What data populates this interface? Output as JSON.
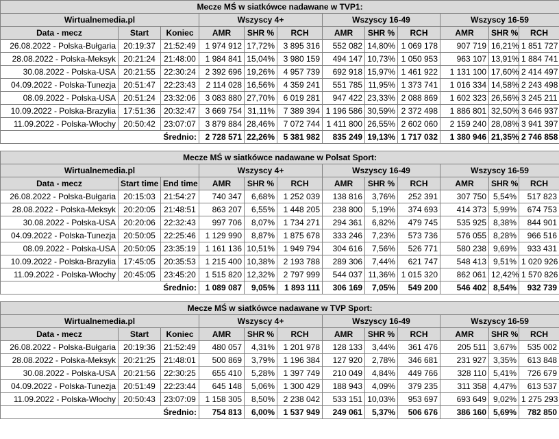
{
  "tables": [
    {
      "title": "Mecze MŚ w siatkówce nadawane w TVP1:",
      "brand": "Wirtualnemedia.pl",
      "groups": [
        "Wszyscy 4+",
        "Wszyscy 16-49",
        "Wszyscy 16-59"
      ],
      "columns": [
        "Data - mecz",
        "Start",
        "Koniec",
        "AMR",
        "SHR %",
        "RCH",
        "AMR",
        "SHR %",
        "RCH",
        "AMR",
        "SHR %",
        "RCH"
      ],
      "rows": [
        [
          "26.08.2022 - Polska-Bułgaria",
          "20:19:37",
          "21:52:49",
          "1 974 912",
          "17,72%",
          "3 895 316",
          "552 082",
          "14,80%",
          "1 069 178",
          "907 719",
          "16,21%",
          "1 851 727"
        ],
        [
          "28.08.2022 - Polska-Meksyk",
          "20:21:24",
          "21:48:00",
          "1 984 841",
          "15,04%",
          "3 980 159",
          "494 147",
          "10,73%",
          "1 050 953",
          "963 107",
          "13,91%",
          "1 884 741"
        ],
        [
          "30.08.2022 - Polska-USA",
          "20:21:55",
          "22:30:24",
          "2 392 696",
          "19,26%",
          "4 957 739",
          "692 918",
          "15,97%",
          "1 461 922",
          "1 131 100",
          "17,60%",
          "2 414 497"
        ],
        [
          "04.09.2022 - Polska-Tunezja",
          "20:51:47",
          "22:23:43",
          "2 114 028",
          "16,56%",
          "4 359 241",
          "551 785",
          "11,95%",
          "1 373 741",
          "1 016 334",
          "14,58%",
          "2 243 498"
        ],
        [
          "08.09.2022 - Polska-USA",
          "20:51:24",
          "23:32:06",
          "3 083 880",
          "27,70%",
          "6 019 281",
          "947 422",
          "23,33%",
          "2 088 869",
          "1 602 323",
          "26,56%",
          "3 245 211"
        ],
        [
          "10.09.2022 - Polska-Brazylia",
          "17:51:36",
          "20:32:47",
          "3 669 754",
          "31,11%",
          "7 389 394",
          "1 196 586",
          "30,59%",
          "2 372 498",
          "1 886 801",
          "32,50%",
          "3 646 937"
        ],
        [
          "11.09.2022 - Polska-Włochy",
          "20:50:42",
          "23:07:07",
          "3 879 884",
          "28,46%",
          "7 072 744",
          "1 411 800",
          "26,55%",
          "2 602 060",
          "2 159 240",
          "28,08%",
          "3 941 397"
        ]
      ],
      "average_label": "Średnio:",
      "average": [
        "2 728 571",
        "22,26%",
        "5 381 982",
        "835 249",
        "19,13%",
        "1 717 032",
        "1 380 946",
        "21,35%",
        "2 746 858"
      ]
    },
    {
      "title": "Mecze MŚ w siatkówce nadawane w Polsat Sport:",
      "brand": "Wirtualnemedia.pl",
      "groups": [
        "Wszyscy 4+",
        "Wszyscy 16-49",
        "Wszyscy 16-59"
      ],
      "columns": [
        "Data - mecz",
        "Start time",
        "End time",
        "AMR",
        "SHR %",
        "RCH",
        "AMR",
        "SHR %",
        "RCH",
        "AMR",
        "SHR %",
        "RCH"
      ],
      "rows": [
        [
          "26.08.2022 - Polska-Bułgaria",
          "20:15:03",
          "21:54:27",
          "740 347",
          "6,68%",
          "1 252 039",
          "138 816",
          "3,76%",
          "252 391",
          "307 750",
          "5,54%",
          "517 823"
        ],
        [
          "28.08.2022 - Polska-Meksyk",
          "20:20:05",
          "21:48:51",
          "863 207",
          "6,55%",
          "1 448 205",
          "238 800",
          "5,19%",
          "374 693",
          "414 373",
          "5,99%",
          "674 753"
        ],
        [
          "30.08.2022 - Polska-USA",
          "20:20:06",
          "22:32:43",
          "997 706",
          "8,07%",
          "1 734 271",
          "294 361",
          "6,82%",
          "479 745",
          "535 925",
          "8,38%",
          "844 901"
        ],
        [
          "04.09.2022 - Polska-Tunezja",
          "20:50:05",
          "22:25:46",
          "1 129 990",
          "8,87%",
          "1 875 678",
          "333 246",
          "7,23%",
          "573 736",
          "576 055",
          "8,28%",
          "966 516"
        ],
        [
          "08.09.2022 - Polska-USA",
          "20:50:05",
          "23:35:19",
          "1 161 136",
          "10,51%",
          "1 949 794",
          "304 616",
          "7,56%",
          "526 771",
          "580 238",
          "9,69%",
          "933 431"
        ],
        [
          "10.09.2022 - Polska-Brazylia",
          "17:45:05",
          "20:35:53",
          "1 215 400",
          "10,38%",
          "2 193 788",
          "289 306",
          "7,44%",
          "621 747",
          "548 413",
          "9,51%",
          "1 020 926"
        ],
        [
          "11.09.2022 - Polska-Włochy",
          "20:45:05",
          "23:45:20",
          "1 515 820",
          "12,32%",
          "2 797 999",
          "544 037",
          "11,36%",
          "1 015 320",
          "862 061",
          "12,42%",
          "1 570 826"
        ]
      ],
      "average_label": "Średnio:",
      "average": [
        "1 089 087",
        "9,05%",
        "1 893 111",
        "306 169",
        "7,05%",
        "549 200",
        "546 402",
        "8,54%",
        "932 739"
      ]
    },
    {
      "title": "Mecze MŚ w siatkówce nadawane w TVP Sport:",
      "brand": "Wirtualnemedia.pl",
      "groups": [
        "Wszyscy 4+",
        "Wszyscy 16-49",
        "Wszyscy 16-59"
      ],
      "columns": [
        "Data - mecz",
        "Start",
        "Koniec",
        "AMR",
        "SHR %",
        "RCH",
        "AMR",
        "SHR %",
        "RCH",
        "AMR",
        "SHR %",
        "RCH"
      ],
      "rows": [
        [
          "26.08.2022 - Polska-Bułgaria",
          "20:19:36",
          "21:52:49",
          "480 057",
          "4,31%",
          "1 201 978",
          "128 133",
          "3,44%",
          "361 476",
          "205 511",
          "3,67%",
          "535 002"
        ],
        [
          "28.08.2022 - Polska-Meksyk",
          "20:21:25",
          "21:48:01",
          "500 869",
          "3,79%",
          "1 196 384",
          "127 920",
          "2,78%",
          "346 681",
          "231 927",
          "3,35%",
          "613 848"
        ],
        [
          "30.08.2022 - Polska-USA",
          "20:21:56",
          "22:30:25",
          "655 410",
          "5,28%",
          "1 397 749",
          "210 049",
          "4,84%",
          "449 766",
          "328 110",
          "5,41%",
          "726 679"
        ],
        [
          "04.09.2022 - Polska-Tunezja",
          "20:51:49",
          "22:23:44",
          "645 148",
          "5,06%",
          "1 300 429",
          "188 943",
          "4,09%",
          "379 235",
          "311 358",
          "4,47%",
          "613 537"
        ],
        [
          "11.09.2022 - Polska-Włochy",
          "20:50:43",
          "23:07:09",
          "1 158 305",
          "8,50%",
          "2 238 042",
          "533 151",
          "10,03%",
          "953 697",
          "693 649",
          "9,02%",
          "1 275 293"
        ]
      ],
      "average_label": "Średnio:",
      "average": [
        "754 813",
        "6,00%",
        "1 537 949",
        "249 061",
        "5,37%",
        "506 676",
        "386 160",
        "5,69%",
        "782 850"
      ]
    }
  ]
}
